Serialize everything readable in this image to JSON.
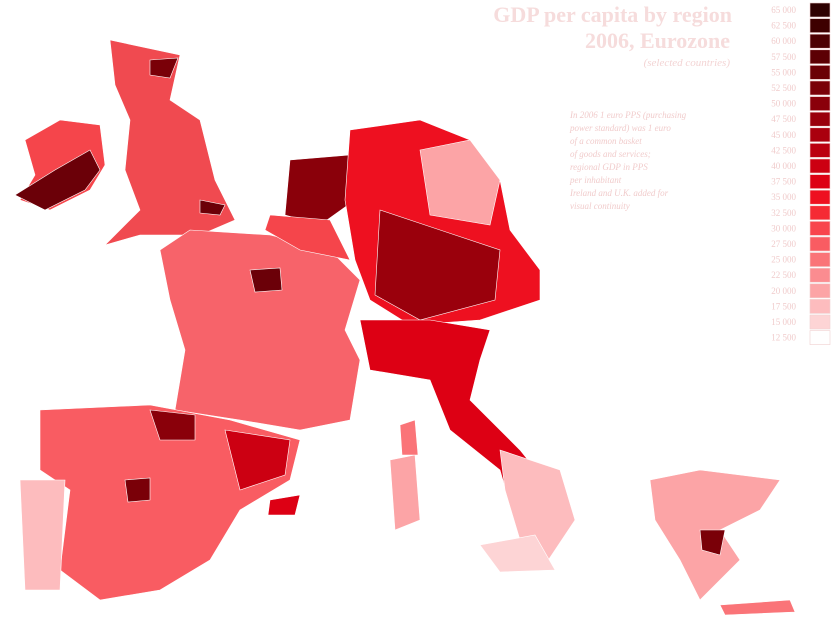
{
  "header": {
    "title_line1": "GDP per capita by region",
    "title_line2": "2006, Eurozone",
    "subtitle": "(selected countries)"
  },
  "note": {
    "lines": [
      "In 2006 1 euro PPS (purchasing",
      "power standard) was 1 euro",
      "of a common basket",
      "of goods and services;",
      "regional GDP in PPS",
      "per inhabitant",
      "Ireland and U.K. added for",
      "visual continuity"
    ]
  },
  "legend": {
    "items": [
      {
        "label": "65 000",
        "color": "#2e0000"
      },
      {
        "label": "62 500",
        "color": "#3d0000"
      },
      {
        "label": "60 000",
        "color": "#4c0002"
      },
      {
        "label": "57 500",
        "color": "#5c0004"
      },
      {
        "label": "55 000",
        "color": "#6b0006"
      },
      {
        "label": "52 500",
        "color": "#7a0008"
      },
      {
        "label": "50 000",
        "color": "#8a000a"
      },
      {
        "label": "47 500",
        "color": "#9a000c"
      },
      {
        "label": "45 000",
        "color": "#aa000e"
      },
      {
        "label": "42 500",
        "color": "#bb0010"
      },
      {
        "label": "40 000",
        "color": "#cc0012"
      },
      {
        "label": "37 500",
        "color": "#dd0014"
      },
      {
        "label": "35 000",
        "color": "#ee1020"
      },
      {
        "label": "32 500",
        "color": "#f52a34"
      },
      {
        "label": "30 000",
        "color": "#f8444c"
      },
      {
        "label": "27 500",
        "color": "#f95c62"
      },
      {
        "label": "25 000",
        "color": "#fa7478"
      },
      {
        "label": "22 500",
        "color": "#fb8c90"
      },
      {
        "label": "20 000",
        "color": "#fca4a6"
      },
      {
        "label": "17 500",
        "color": "#fdbcbe"
      },
      {
        "label": "15 000",
        "color": "#fdd4d5"
      },
      {
        "label": "12 500",
        "color": "#ffffff"
      }
    ]
  }
}
